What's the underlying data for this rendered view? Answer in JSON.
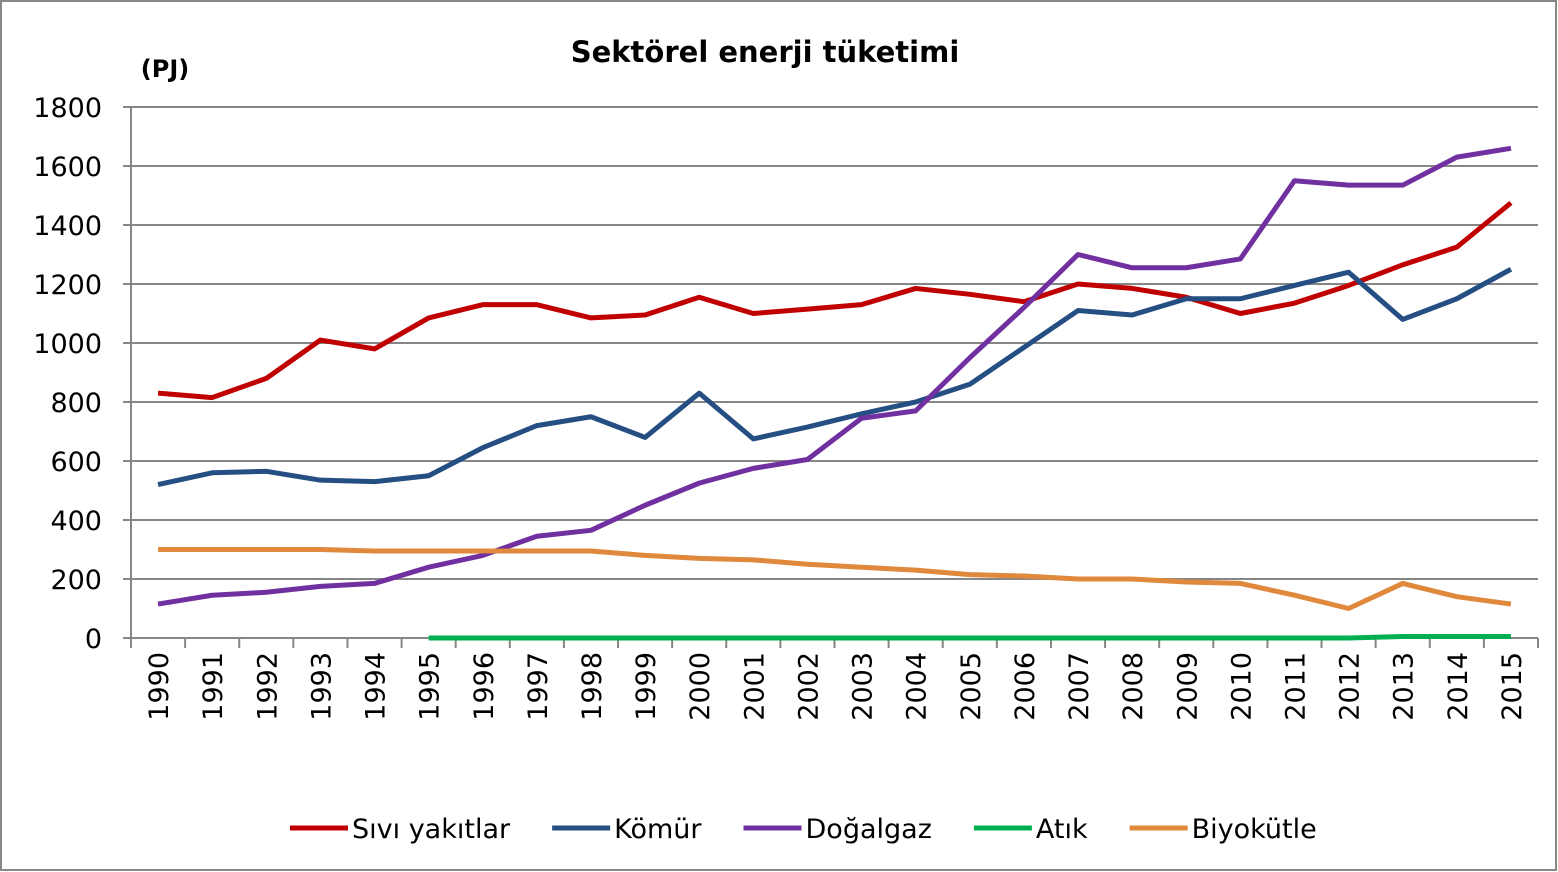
{
  "chart_data": {
    "type": "line",
    "title": "Sektörel enerji tüketimi",
    "y_label": "(PJ)",
    "categories": [
      "1990",
      "1991",
      "1992",
      "1993",
      "1994",
      "1995",
      "1996",
      "1997",
      "1998",
      "1999",
      "2000",
      "2001",
      "2002",
      "2003",
      "2004",
      "2005",
      "2006",
      "2007",
      "2008",
      "2009",
      "2010",
      "2011",
      "2012",
      "2013",
      "2014",
      "2015"
    ],
    "series": [
      {
        "name": "Sıvı yakıtlar",
        "color": "#c00000",
        "values": [
          830,
          815,
          880,
          1010,
          980,
          1085,
          1130,
          1130,
          1085,
          1095,
          1155,
          1100,
          1115,
          1130,
          1185,
          1165,
          1140,
          1200,
          1185,
          1155,
          1100,
          1135,
          1195,
          1265,
          1325,
          1475
        ]
      },
      {
        "name": "Kömür",
        "color": "#254e82",
        "values": [
          520,
          560,
          565,
          535,
          530,
          550,
          645,
          720,
          750,
          680,
          830,
          675,
          715,
          760,
          800,
          860,
          985,
          1110,
          1095,
          1150,
          1150,
          1195,
          1240,
          1080,
          1150,
          1250
        ]
      },
      {
        "name": "Doğalgaz",
        "color": "#7030a0",
        "values": [
          115,
          145,
          155,
          175,
          185,
          240,
          280,
          345,
          365,
          450,
          525,
          575,
          605,
          745,
          770,
          950,
          1120,
          1300,
          1255,
          1255,
          1285,
          1550,
          1535,
          1535,
          1630,
          1660
        ]
      },
      {
        "name": "Atık",
        "color": "#00b050",
        "values": [
          null,
          null,
          null,
          null,
          null,
          0,
          0,
          0,
          0,
          0,
          0,
          0,
          0,
          0,
          0,
          0,
          0,
          0,
          0,
          0,
          0,
          0,
          0,
          5,
          5,
          5
        ]
      },
      {
        "name": "Biyokütle",
        "color": "#e0883c",
        "values": [
          300,
          300,
          300,
          300,
          295,
          295,
          295,
          295,
          295,
          280,
          270,
          265,
          250,
          240,
          230,
          215,
          210,
          200,
          200,
          190,
          185,
          145,
          100,
          185,
          140,
          115
        ]
      }
    ],
    "ylim": [
      0,
      1800
    ],
    "yticks": [
      0,
      200,
      400,
      600,
      800,
      1000,
      1200,
      1400,
      1600,
      1800
    ],
    "grid": true,
    "legend": "bottom"
  }
}
